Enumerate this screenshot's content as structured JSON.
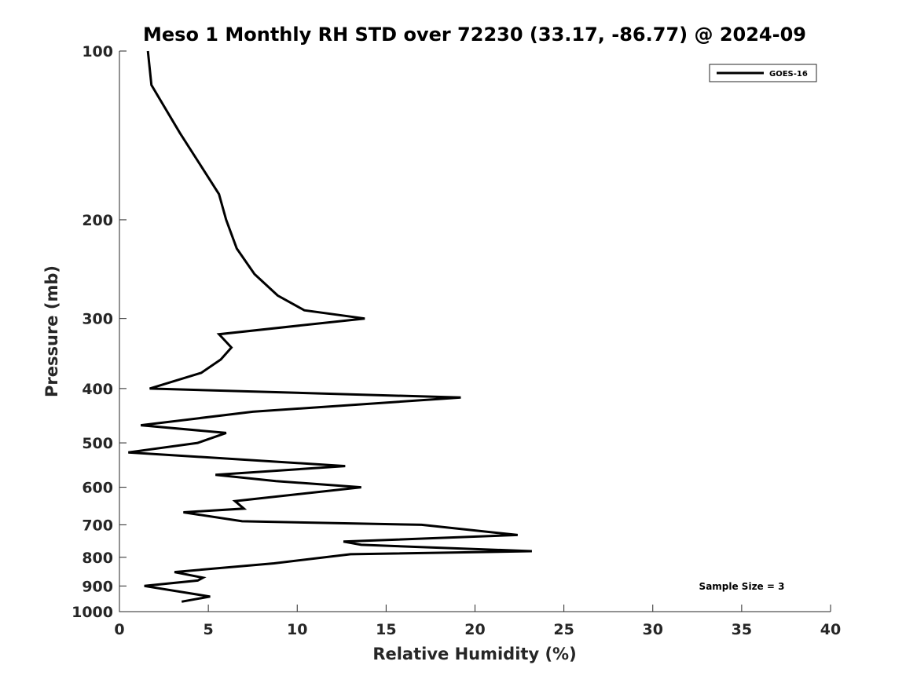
{
  "chart_data": {
    "type": "line",
    "title": "Meso 1 Monthly RH STD over 72230 (33.17, -86.77) @ 2024-09",
    "xlabel": "Relative Humidity (%)",
    "ylabel": "Pressure (mb)",
    "xlim": [
      0,
      40
    ],
    "ylim": [
      100,
      1000
    ],
    "y_scale": "log",
    "y_reversed": true,
    "x_ticks": [
      "0",
      "5",
      "10",
      "15",
      "20",
      "25",
      "30",
      "35",
      "40"
    ],
    "y_ticks": [
      "100",
      "200",
      "300",
      "400",
      "500",
      "600",
      "700",
      "800",
      "900",
      "1000"
    ],
    "grid": false,
    "legend_position": "top-right",
    "annotation": "Sample Size = 3",
    "series": [
      {
        "name": "GOES-16",
        "color": "#000000",
        "x": [
          1.6,
          1.8,
          3.4,
          5.0,
          5.6,
          6.0,
          6.6,
          7.6,
          8.9,
          10.4,
          13.8,
          5.6,
          6.3,
          5.7,
          4.6,
          1.7,
          19.2,
          7.5,
          1.2,
          6.0,
          4.4,
          0.5,
          12.7,
          5.4,
          8.8,
          13.6,
          6.5,
          7.0,
          3.6,
          6.9,
          17.0,
          22.4,
          12.6,
          13.6,
          23.2,
          13.0,
          8.7,
          3.1,
          4.7,
          4.4,
          1.4,
          5.1,
          3.5
        ],
        "y": [
          100,
          115,
          140,
          168,
          180,
          200,
          225,
          250,
          273,
          290,
          300,
          320,
          338,
          355,
          375,
          400,
          415,
          440,
          465,
          480,
          500,
          520,
          550,
          570,
          585,
          600,
          635,
          655,
          665,
          690,
          700,
          730,
          750,
          760,
          780,
          790,
          820,
          850,
          870,
          880,
          900,
          940,
          960
        ]
      }
    ]
  }
}
